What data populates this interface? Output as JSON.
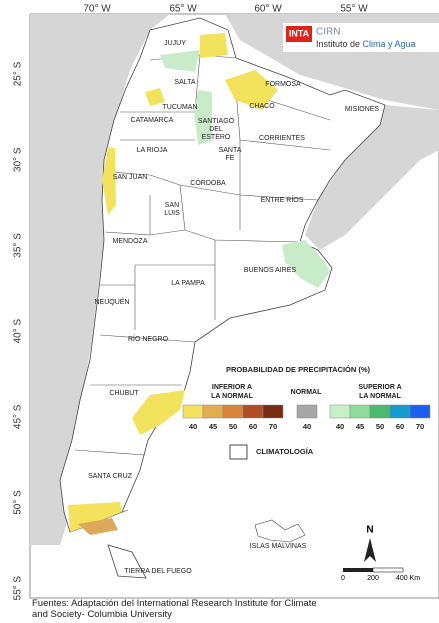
{
  "logo": {
    "inta": "INTA",
    "cirn": "CIRN",
    "institute_a": "Instituto de ",
    "institute_b": "Clima y Agua"
  },
  "lon_labels": [
    "70° W",
    "65° W",
    "60° W",
    "55° W"
  ],
  "lat_labels": [
    "25° S",
    "30° S",
    "35° S",
    "40° S",
    "45° S",
    "50° S",
    "55° S"
  ],
  "provinces": [
    "JUJUY",
    "SALTA",
    "FORMOSA",
    "TUCUMAN",
    "CHACO",
    "MISIONES",
    "CATAMARCA",
    "SANTIAGO",
    "DEL",
    "ESTERO",
    "CORRIENTES",
    "LA RIOJA",
    "SANTA",
    "FE",
    "SAN JUAN",
    "CÓRDOBA",
    "ENTRE RÍOS",
    "SAN",
    "LUIS",
    "MENDOZA",
    "BUENOS AIRES",
    "LA PAMPA",
    "NEUQUÉN",
    "RÍO NEGRO",
    "CHUBUT",
    "SANTA CRUZ",
    "TIERRA DEL FUEGO",
    "ISLAS MALVINAS"
  ],
  "legend": {
    "title": "PROBABILIDAD DE PRECIPITACIÓN (%)",
    "below_a": "INFERIOR A",
    "below_b": "LA NORMAL",
    "normal": "NORMAL",
    "above_a": "SUPERIOR A",
    "above_b": "LA NORMAL",
    "below_values": [
      40,
      45,
      50,
      60,
      70
    ],
    "normal_values": [
      40
    ],
    "above_values": [
      40,
      45,
      50,
      60,
      70
    ],
    "climatology": "CLIMATOLOGÍA"
  },
  "north": "N",
  "scale": [
    "0",
    "200",
    "400 Km"
  ],
  "footer": [
    "Fuentes: Adaptación del International Research Institute for Climate",
    "and Society- Columbia University"
  ]
}
